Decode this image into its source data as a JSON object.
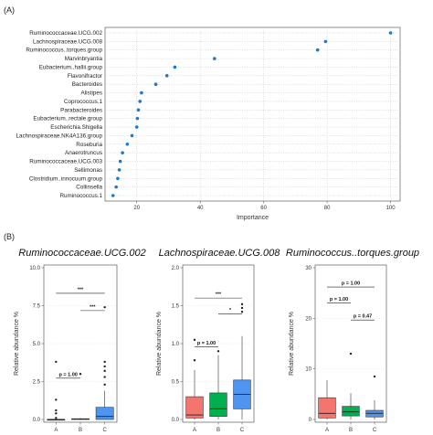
{
  "panels": {
    "a": "(A)",
    "b": "(B)"
  },
  "chart_data": [
    {
      "type": "scatter",
      "xlabel": "Importance",
      "xlim": [
        10,
        103
      ],
      "x_ticks": [
        20,
        40,
        60,
        80,
        100
      ],
      "grid": "dotted",
      "categories": [
        "Ruminococcaceae.UCG.002",
        "Lachnospiraceae.UCG.008",
        "Ruminococcus..torques.group",
        "Marvinbryantia",
        "Eubacterium..hallii.group",
        "Flavonifractor",
        "Bacteroides",
        "Alistipes",
        "Coprococcus.1",
        "Parabacteroides",
        "Eubacterium..rectale.group",
        "Escherichia.Shigella",
        "Lachnospiraceae.NK4A136.group",
        "Roseburia",
        "Anaerotruncus",
        "Ruminococcaceae.UCG.003",
        "Sellimonas",
        "Clostridium..innocuum.group",
        "Collinsella",
        "Ruminococcus.1"
      ],
      "values": [
        100,
        79.5,
        77,
        44.5,
        32,
        29.5,
        26,
        21.5,
        21,
        20.5,
        20.2,
        20,
        18.5,
        17,
        15.5,
        14.8,
        14.5,
        14,
        13.5,
        12.5
      ],
      "point_color": "#1f78c8"
    },
    {
      "type": "box",
      "title": "Ruminococcaceae.UCG.002",
      "ylabel": "Relative abundance %",
      "ylim": [
        0,
        10
      ],
      "y_ticks": [
        "0.0",
        "2.5",
        "5.0",
        "7.5",
        "10.0"
      ],
      "categories": [
        "A",
        "B",
        "C"
      ],
      "colors": [
        "#f4756d",
        "#00b04f",
        "#4f95f0"
      ],
      "boxes": [
        {
          "min": 0,
          "q1": 0,
          "median": 0,
          "q3": 0,
          "max": 0,
          "outliers": [
            0.1,
            0.4,
            0.6,
            1.3,
            3.8
          ]
        },
        {
          "min": 0,
          "q1": 0,
          "median": 0.02,
          "q3": 0.05,
          "max": 0.1,
          "outliers": [
            3.0
          ]
        },
        {
          "min": 0,
          "q1": 0,
          "median": 0.2,
          "q3": 0.8,
          "max": 1.9,
          "outliers": [
            2.3,
            2.8,
            3.2,
            3.5,
            3.8,
            7.4
          ]
        }
      ],
      "comparisons": [
        {
          "from": "A",
          "to": "C",
          "label": "***"
        },
        {
          "from": "B",
          "to": "C",
          "label": "***"
        },
        {
          "from": "A",
          "to": "B",
          "label": "p = 1.00"
        }
      ]
    },
    {
      "type": "box",
      "title": "Lachnospiraceae.UCG.008",
      "ylabel": "Relative abundance %",
      "ylim": [
        0,
        2.0
      ],
      "y_ticks": [
        "0.0",
        "0.5",
        "1.0",
        "1.5",
        "2.0"
      ],
      "categories": [
        "A",
        "B",
        "C"
      ],
      "colors": [
        "#f4756d",
        "#00b04f",
        "#4f95f0"
      ],
      "boxes": [
        {
          "min": 0,
          "q1": 0.02,
          "median": 0.06,
          "q3": 0.3,
          "max": 0.65,
          "outliers": [
            0.78,
            1.05
          ]
        },
        {
          "min": 0,
          "q1": 0.04,
          "median": 0.14,
          "q3": 0.35,
          "max": 0.85,
          "outliers": [
            0.9
          ]
        },
        {
          "min": 0,
          "q1": 0.14,
          "median": 0.33,
          "q3": 0.52,
          "max": 1.1,
          "outliers": [
            1.42,
            1.47,
            1.52
          ]
        }
      ],
      "comparisons": [
        {
          "from": "A",
          "to": "C",
          "label": "***"
        },
        {
          "from": "B",
          "to": "C",
          "label": "*"
        },
        {
          "from": "A",
          "to": "B",
          "label": "p = 1.00"
        }
      ]
    },
    {
      "type": "box",
      "title": "Ruminococcus..torques.group",
      "ylabel": "Relative abundance %",
      "ylim": [
        0,
        30
      ],
      "y_ticks": [
        "0",
        "10",
        "20",
        "30"
      ],
      "categories": [
        "A",
        "B",
        "C"
      ],
      "colors": [
        "#f4756d",
        "#00b04f",
        "#4f95f0"
      ],
      "boxes": [
        {
          "min": 0,
          "q1": 0.3,
          "median": 1.2,
          "q3": 4.3,
          "max": 7.8,
          "outliers": []
        },
        {
          "min": 0,
          "q1": 0.7,
          "median": 1.5,
          "q3": 2.6,
          "max": 5.2,
          "outliers": [
            13.0
          ]
        },
        {
          "min": 0,
          "q1": 0.5,
          "median": 1.2,
          "q3": 1.8,
          "max": 3.8,
          "outliers": [
            8.5
          ]
        }
      ],
      "comparisons": [
        {
          "from": "A",
          "to": "C",
          "label": "p = 1.00"
        },
        {
          "from": "A",
          "to": "B",
          "label": "p = 1.00"
        },
        {
          "from": "B",
          "to": "C",
          "label": "p = 0.47"
        }
      ]
    }
  ]
}
